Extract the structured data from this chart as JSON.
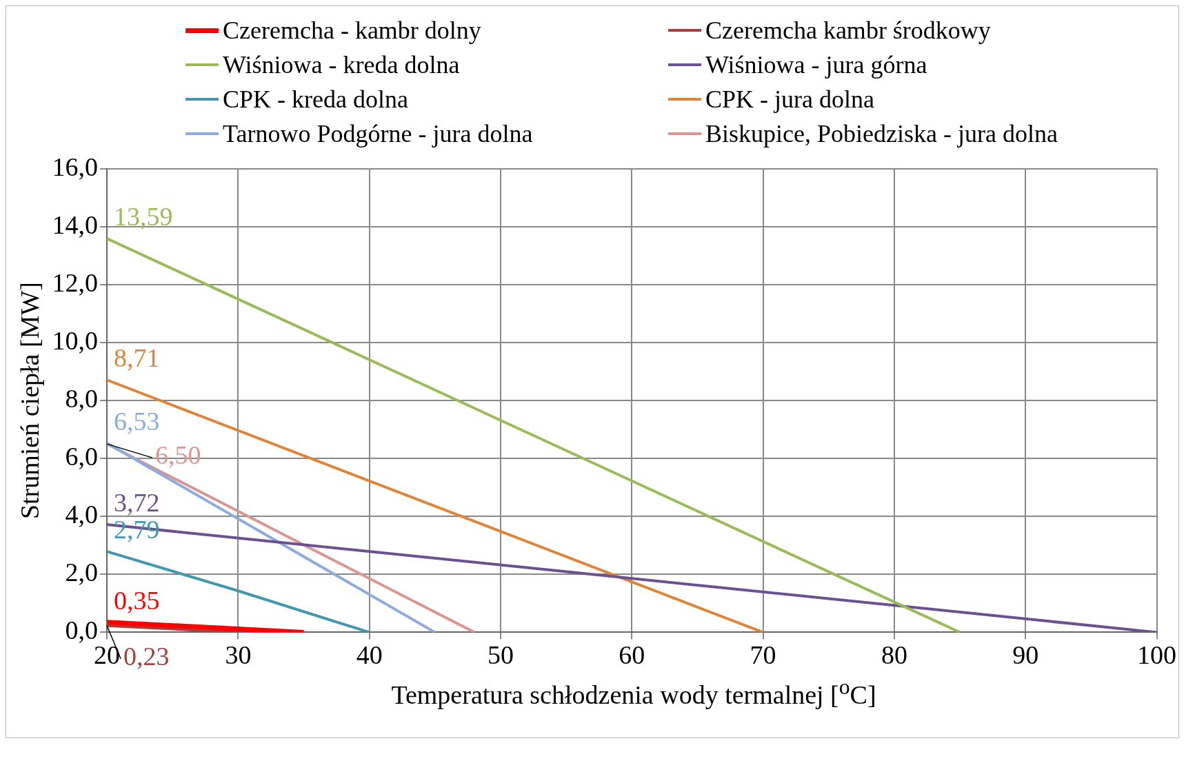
{
  "chart_data": {
    "type": "line",
    "xlabel": "Temperatura schłodzenia wody termalnej [$^{o}$C]",
    "ylabel": "Strumień ciepła [MW]",
    "xlim": [
      20,
      100
    ],
    "xticks": [
      20,
      30,
      40,
      50,
      60,
      70,
      80,
      90,
      100
    ],
    "ylim": [
      0,
      16
    ],
    "yticks": [
      {
        "value": 0,
        "label": "0,0"
      },
      {
        "value": 2,
        "label": "2,0"
      },
      {
        "value": 4,
        "label": "4,0"
      },
      {
        "value": 6,
        "label": "6,0"
      },
      {
        "value": 8,
        "label": "8,0"
      },
      {
        "value": 10,
        "label": "10,0"
      },
      {
        "value": 12,
        "label": "12,0"
      },
      {
        "value": 14,
        "label": "14,0"
      },
      {
        "value": 16,
        "label": "16,0"
      }
    ],
    "grid": true,
    "legend": "top",
    "marker": "none",
    "line_style": "solid",
    "series": [
      {
        "name": "Czeremcha - kambr dolny",
        "color": "#ff0000",
        "x": [
          20,
          35
        ],
        "values": [
          0.35,
          0
        ],
        "value_labels": [
          "0,35",
          null
        ]
      },
      {
        "name": "Czeremcha kambr środkowy",
        "color": "#a5403c",
        "x": [
          20,
          30
        ],
        "values": [
          0.23,
          0
        ],
        "value_labels": [
          "0,23",
          null
        ]
      },
      {
        "name": "Wiśniowa - kreda dolna",
        "color": "#9bbb59",
        "x": [
          20,
          85
        ],
        "values": [
          13.59,
          0
        ],
        "value_labels": [
          "13,59",
          null
        ]
      },
      {
        "name": "Wiśniowa - jura górna",
        "color": "#6b5190",
        "x": [
          20,
          100
        ],
        "values": [
          3.72,
          0
        ],
        "value_labels": [
          "3,72",
          null
        ]
      },
      {
        "name": "CPK - kreda dolna",
        "color": "#4298ad",
        "x": [
          20,
          30,
          40
        ],
        "values": [
          2.79,
          1.43,
          0
        ],
        "value_labels": [
          "2,79",
          null,
          null
        ]
      },
      {
        "name": "CPK - jura dolna",
        "color": "#e0843a",
        "x": [
          20,
          70
        ],
        "values": [
          8.71,
          0
        ],
        "value_labels": [
          "8,71",
          null
        ]
      },
      {
        "name": "Tarnowo Podgórne - jura dolna",
        "color": "#8faadc",
        "x": [
          20,
          45
        ],
        "values": [
          6.53,
          0
        ],
        "value_labels": [
          "6,53",
          null
        ]
      },
      {
        "name": "Biskupice, Pobiedziska - jura dolna",
        "color": "#d99694",
        "x": [
          20,
          48
        ],
        "values": [
          6.5,
          0
        ],
        "value_labels": [
          "6,50",
          null
        ]
      }
    ]
  }
}
